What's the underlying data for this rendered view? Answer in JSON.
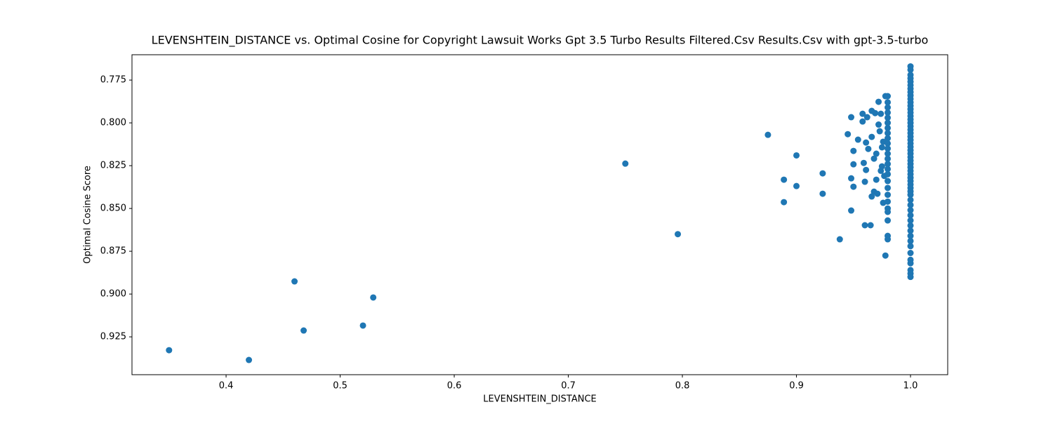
{
  "chart_data": {
    "type": "scatter",
    "title": "LEVENSHTEIN_DISTANCE vs. Optimal Cosine for Copyright Lawsuit Works Gpt 3.5 Turbo Results Filtered.Csv Results.Csv with gpt-3.5-turbo",
    "x_label": "LEVENSHTEIN_DISTANCE",
    "y_label": "Optimal Cosine Score",
    "color": "#1f77b4",
    "xlim": [
      0.3175,
      1.0326
    ],
    "ylim": [
      0.9471,
      0.7602
    ],
    "xticks": [
      0.4,
      0.5,
      0.6,
      0.7,
      0.8,
      0.9,
      {
        "value": 1,
        "label": "1.0"
      }
    ],
    "yticks": [
      0.775,
      {
        "value": 0.8,
        "label": "0.800"
      },
      0.825,
      {
        "value": 0.85,
        "label": "0.850"
      },
      0.875,
      {
        "value": 0.9,
        "label": "0.900"
      },
      0.925
    ],
    "grid": false,
    "x": [
      0.35,
      0.42,
      0.46,
      0.468,
      0.52,
      0.529,
      0.75,
      0.796,
      0.875,
      0.9,
      0.889,
      0.9,
      0.889,
      0.923,
      0.923,
      0.938,
      0.948,
      0.945,
      0.948,
      0.95,
      0.95,
      0.948,
      0.95,
      0.954,
      0.958,
      0.958,
      0.962,
      0.959,
      0.961,
      0.96,
      0.961,
      0.963,
      0.96,
      0.965,
      0.966,
      0.969,
      0.966,
      0.968,
      0.97,
      0.968,
      0.966,
      0.972,
      0.971,
      0.974,
      0.973,
      0.975,
      0.975,
      0.978,
      0.978,
      0.976,
      0.972,
      0.976,
      0.97,
      0.974,
      0.977,
      0.98,
      0.98,
      0.98,
      0.98,
      0.98,
      0.98,
      0.98,
      0.98,
      0.98,
      0.98,
      0.98,
      0.98,
      0.98,
      0.98,
      0.98,
      0.98,
      0.98,
      0.98,
      0.98,
      0.98,
      0.98,
      0.98,
      0.98,
      0.98,
      0.98,
      1,
      1,
      1,
      1,
      1,
      1,
      1,
      1,
      1,
      1,
      1,
      1,
      1,
      1,
      1,
      1,
      1,
      1,
      1,
      1,
      1,
      1,
      1,
      1,
      1,
      1,
      1,
      1,
      1,
      1,
      1,
      1,
      1,
      1,
      1,
      1,
      1,
      1,
      1,
      1,
      1,
      1,
      1,
      1,
      1,
      1,
      1,
      1,
      1,
      1,
      1,
      1,
      1,
      1
    ],
    "y": [
      0.9328,
      0.9385,
      0.8926,
      0.9213,
      0.9184,
      0.902,
      0.8238,
      0.865,
      0.807,
      0.819,
      0.8332,
      0.8369,
      0.8463,
      0.8295,
      0.8414,
      0.868,
      0.8512,
      0.8066,
      0.7967,
      0.8164,
      0.8242,
      0.8324,
      0.8373,
      0.8098,
      0.7947,
      0.7992,
      0.7967,
      0.8234,
      0.8275,
      0.8344,
      0.8115,
      0.8152,
      0.8598,
      0.8598,
      0.793,
      0.7943,
      0.8082,
      0.8209,
      0.8332,
      0.8402,
      0.843,
      0.7877,
      0.8414,
      0.7947,
      0.8049,
      0.8143,
      0.8254,
      0.7844,
      0.8775,
      0.8467,
      0.801,
      0.811,
      0.818,
      0.828,
      0.831,
      0.7844,
      0.788,
      0.791,
      0.794,
      0.797,
      0.8,
      0.803,
      0.806,
      0.809,
      0.812,
      0.815,
      0.818,
      0.821,
      0.824,
      0.827,
      0.83,
      0.834,
      0.838,
      0.842,
      0.846,
      0.85,
      0.852,
      0.857,
      0.866,
      0.868,
      0.767,
      0.769,
      0.772,
      0.774,
      0.776,
      0.778,
      0.78,
      0.782,
      0.784,
      0.786,
      0.788,
      0.79,
      0.792,
      0.794,
      0.796,
      0.798,
      0.8,
      0.802,
      0.804,
      0.806,
      0.808,
      0.81,
      0.812,
      0.814,
      0.816,
      0.818,
      0.82,
      0.822,
      0.824,
      0.826,
      0.828,
      0.83,
      0.832,
      0.834,
      0.836,
      0.838,
      0.84,
      0.842,
      0.845,
      0.848,
      0.851,
      0.854,
      0.857,
      0.86,
      0.863,
      0.866,
      0.869,
      0.872,
      0.876,
      0.88,
      0.882,
      0.886,
      0.888,
      0.89
    ]
  }
}
